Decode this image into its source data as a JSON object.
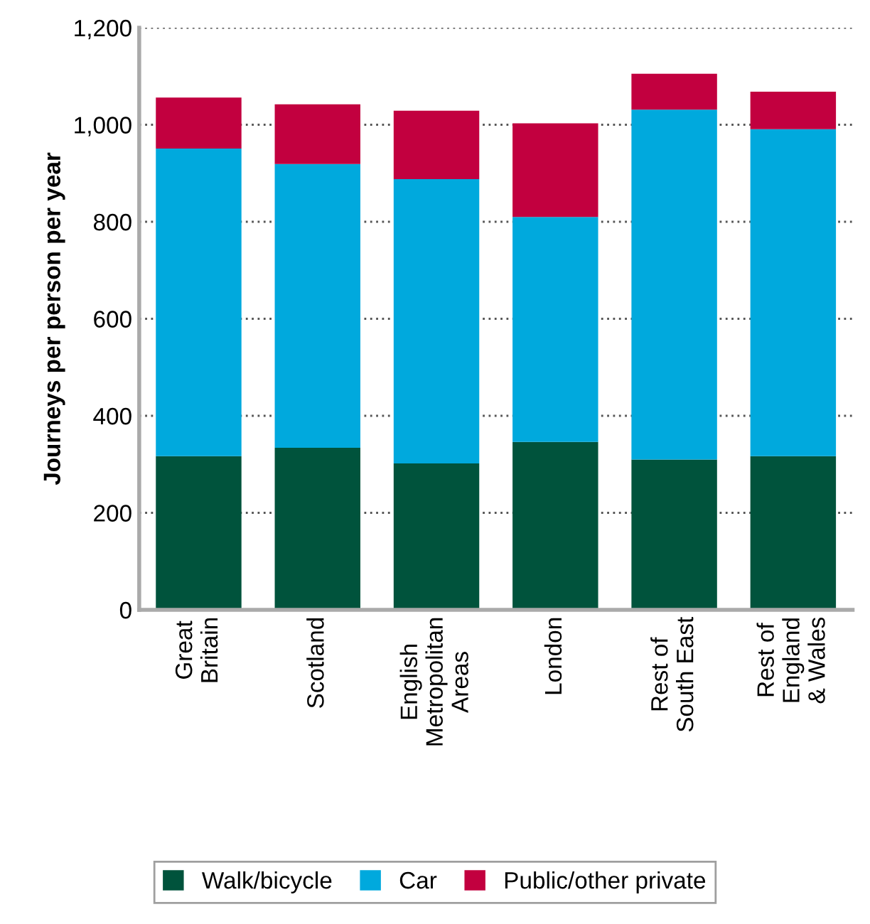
{
  "chart_data": {
    "type": "bar",
    "stacked": true,
    "ylabel": "Journeys per person per year",
    "categories": [
      "Great\nBritain",
      "Scotland",
      "English\nMetropolitan\nAreas",
      "London",
      "Rest of\nSouth East",
      "Rest of\nEngland\n& Wales"
    ],
    "series": [
      {
        "name": "Walk/bicycle",
        "color": "#00533c",
        "values": [
          317,
          334,
          302,
          346,
          310,
          317
        ]
      },
      {
        "name": "Car",
        "color": "#00a9dd",
        "values": [
          634,
          585,
          586,
          464,
          721,
          674
        ]
      },
      {
        "name": "Public/other private",
        "color": "#c2003f",
        "values": [
          105,
          123,
          141,
          193,
          74,
          77
        ]
      }
    ],
    "ylim": [
      0,
      1200
    ],
    "yticks": [
      0,
      200,
      400,
      600,
      800,
      {
        "value": 1000,
        "label": "1,000"
      },
      {
        "value": 1200,
        "label": "1,200"
      }
    ],
    "grid": "y",
    "legend": "bottom"
  }
}
